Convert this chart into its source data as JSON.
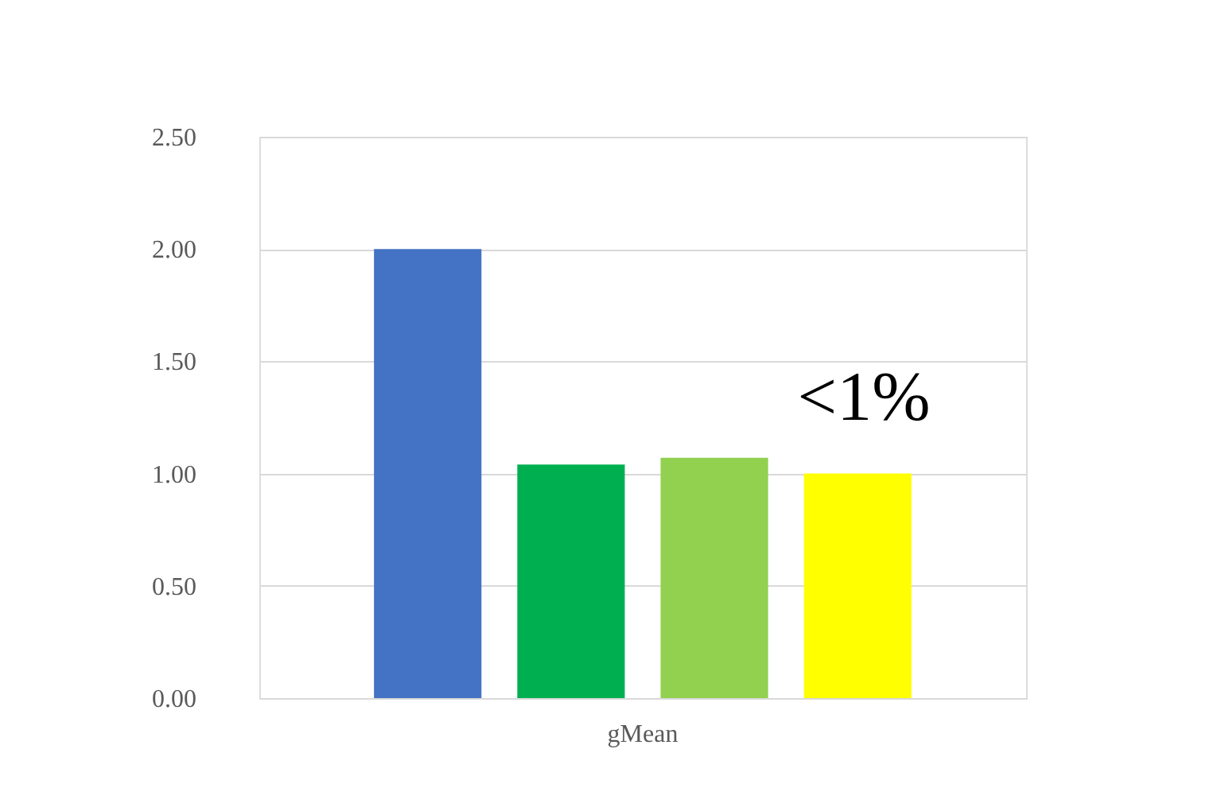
{
  "chart_data": {
    "type": "bar",
    "categories": [
      "gMean"
    ],
    "series": [
      {
        "color": "#4472c4",
        "values": [
          2.0
        ]
      },
      {
        "color": "#00b050",
        "values": [
          1.04
        ]
      },
      {
        "color": "#92d050",
        "values": [
          1.07
        ]
      },
      {
        "color": "#ffff00",
        "values": [
          1.0
        ]
      }
    ],
    "ylim": [
      0,
      2.5
    ],
    "yticks": [
      {
        "value": 0,
        "label": "0.00"
      },
      {
        "value": 0.5,
        "label": "0.50"
      },
      {
        "value": 1,
        "label": "1.00"
      },
      {
        "value": 1.5,
        "label": "1.50"
      },
      {
        "value": 2,
        "label": "2.00"
      },
      {
        "value": 2.5,
        "label": "2.50"
      }
    ],
    "grid": "y",
    "legend": false,
    "annotations": [
      "<1%"
    ]
  }
}
